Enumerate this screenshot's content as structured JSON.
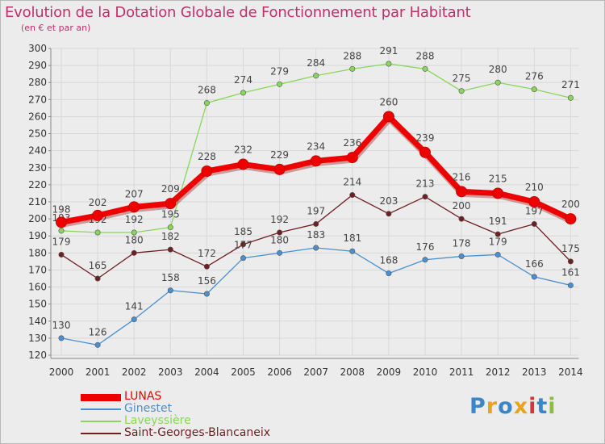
{
  "title": "Evolution de la Dotation Globale de Fonctionnement par Habitant",
  "subtitle": "(en € et par an)",
  "logo": {
    "text": "Proxiti",
    "letters": [
      {
        "ch": "P",
        "color": "#3a86c8"
      },
      {
        "ch": "r",
        "color": "#e8a321"
      },
      {
        "ch": "o",
        "color": "#3a86c8"
      },
      {
        "ch": "x",
        "color": "#e8a321"
      },
      {
        "ch": "i",
        "color": "#d8323a"
      },
      {
        "ch": "t",
        "color": "#3a86c8"
      },
      {
        "ch": "i",
        "color": "#8cbd3c"
      }
    ]
  },
  "chart_data": {
    "type": "line",
    "x": [
      "2000",
      "2001",
      "2002",
      "2003",
      "2004",
      "2005",
      "2006",
      "2007",
      "2008",
      "2009",
      "2010",
      "2011",
      "2012",
      "2013",
      "2014"
    ],
    "ylim": [
      120,
      300
    ],
    "ytick_step": 10,
    "grid": true,
    "legend_position": "bottom-left",
    "series": [
      {
        "name": "LUNAS",
        "color": "#ee0000",
        "values": [
          198,
          202,
          207,
          209,
          228,
          232,
          229,
          234,
          236,
          260,
          239,
          216,
          215,
          210,
          200
        ]
      },
      {
        "name": "Ginestet",
        "color": "#4a8fd0",
        "values": [
          130,
          126,
          141,
          158,
          156,
          177,
          180,
          183,
          181,
          168,
          176,
          178,
          179,
          166,
          161
        ]
      },
      {
        "name": "Laveyssière",
        "color": "#88d65a",
        "values": [
          193,
          192,
          192,
          195,
          268,
          274,
          279,
          284,
          288,
          291,
          288,
          275,
          280,
          276,
          271
        ]
      },
      {
        "name": "Saint-Georges-Blancaneix",
        "color": "#6e1f22",
        "values": [
          179,
          165,
          180,
          182,
          172,
          185,
          192,
          197,
          214,
          203,
          213,
          200,
          191,
          197,
          175
        ]
      }
    ]
  }
}
